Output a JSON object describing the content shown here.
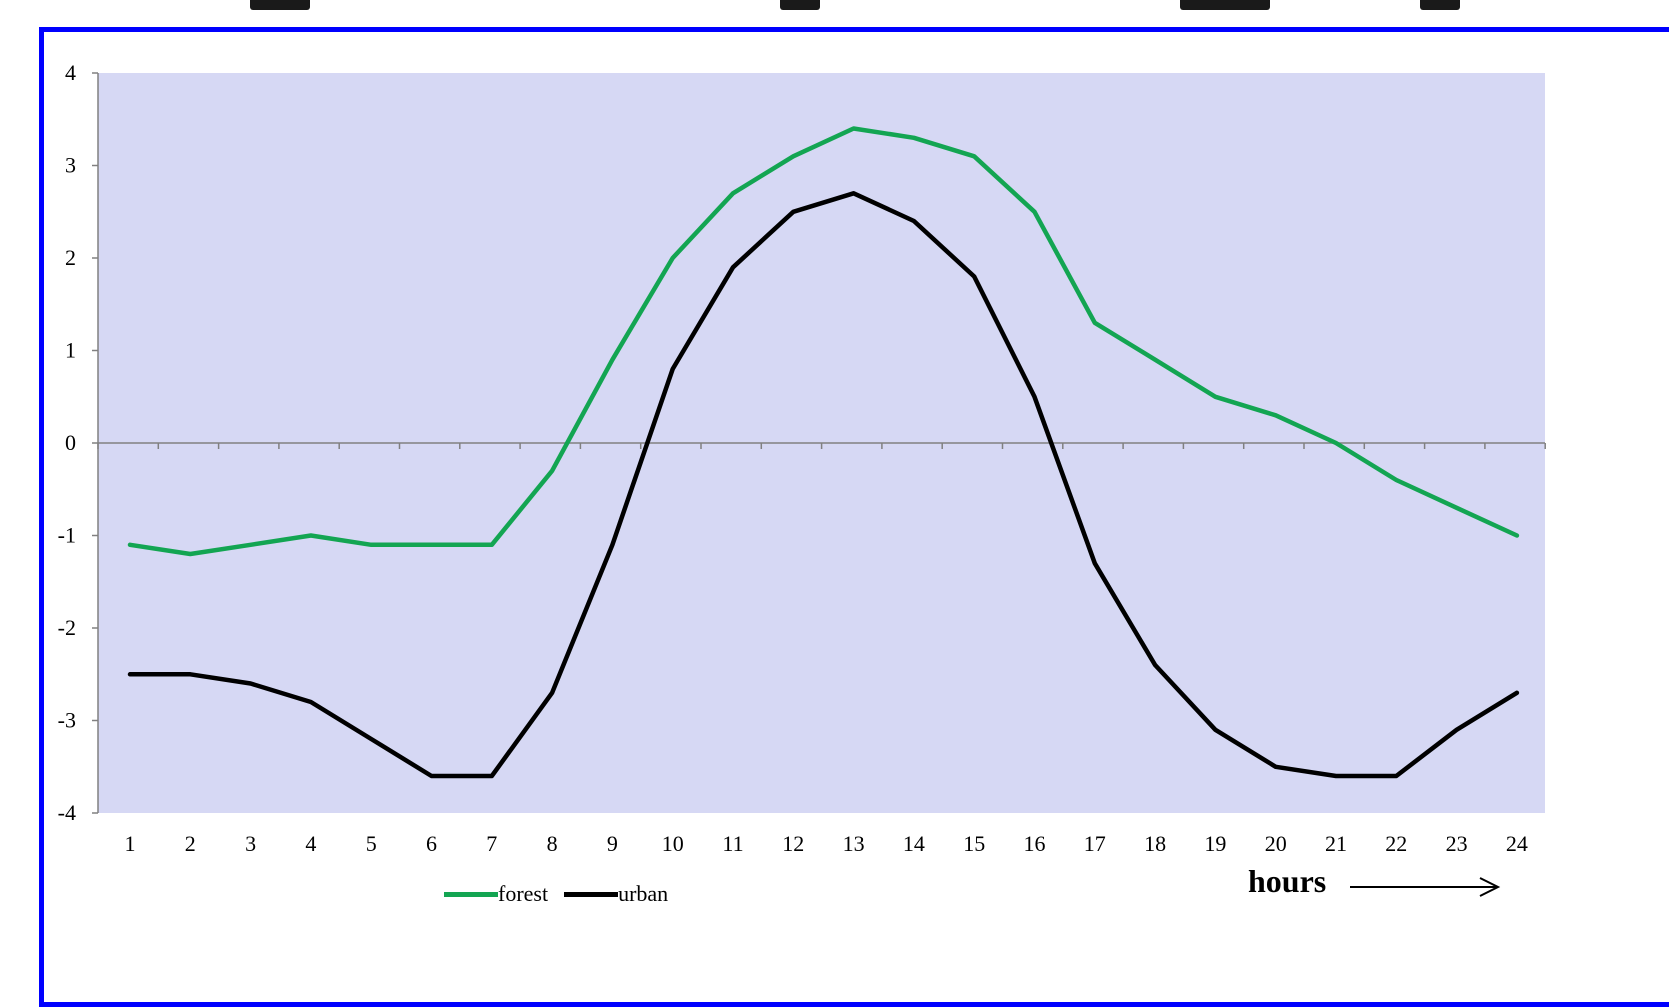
{
  "chart_data": {
    "type": "line",
    "categories": [
      "1",
      "2",
      "3",
      "4",
      "5",
      "6",
      "7",
      "8",
      "9",
      "10",
      "11",
      "12",
      "13",
      "14",
      "15",
      "16",
      "17",
      "18",
      "19",
      "20",
      "21",
      "22",
      "23",
      "24"
    ],
    "series": [
      {
        "name": "forest",
        "color": "#13a552",
        "values": [
          -1.1,
          -1.2,
          -1.1,
          -1.0,
          -1.1,
          -1.1,
          -1.1,
          -0.3,
          0.9,
          2.0,
          2.7,
          3.1,
          3.4,
          3.3,
          3.1,
          2.5,
          1.3,
          0.9,
          0.5,
          0.3,
          0.0,
          -0.4,
          -0.7,
          -1.0
        ]
      },
      {
        "name": "urban",
        "color": "#000000",
        "values": [
          -2.5,
          -2.5,
          -2.6,
          -2.8,
          -3.2,
          -3.6,
          -3.6,
          -2.7,
          -1.1,
          0.8,
          1.9,
          2.5,
          2.7,
          2.4,
          1.8,
          0.5,
          -1.3,
          -2.4,
          -3.1,
          -3.5,
          -3.6,
          -3.6,
          -3.1,
          -2.7
        ]
      }
    ],
    "yticks": [
      "4",
      "3",
      "2",
      "1",
      "0",
      "-1",
      "-2",
      "-3",
      "-4"
    ],
    "ylim": [
      -4,
      4
    ],
    "xlabel": "hours",
    "plot_background": "#d6d8f4",
    "frame_color": "#0000ff",
    "legend_position": "bottom-center",
    "grid": false
  }
}
